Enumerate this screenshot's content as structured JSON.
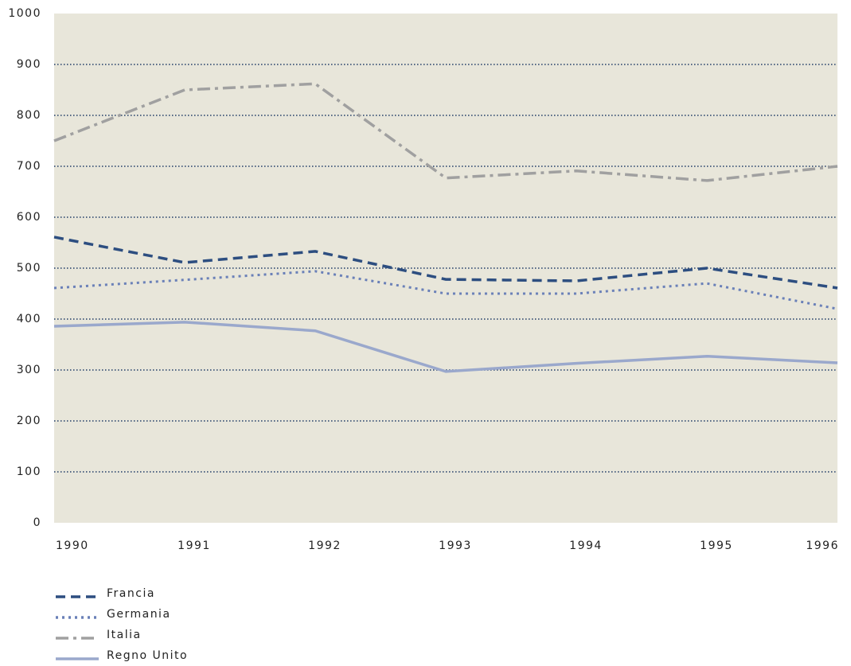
{
  "chart_data": {
    "type": "line",
    "x": [
      1990,
      1991,
      1992,
      1993,
      1994,
      1995,
      1996
    ],
    "xlim": [
      1990,
      1996
    ],
    "xticks": [
      1990,
      1991,
      1992,
      1993,
      1994,
      1995,
      1996
    ],
    "ylim": [
      0,
      1000
    ],
    "yticks": [
      0,
      100,
      200,
      300,
      400,
      500,
      600,
      700,
      800,
      900,
      1000
    ],
    "grid": true,
    "series": [
      {
        "name": "Francia",
        "color": "#2d4e80",
        "style": "dashed",
        "values": [
          561,
          511,
          533,
          478,
          475,
          500,
          461
        ]
      },
      {
        "name": "Germania",
        "color": "#6a80b8",
        "style": "dotted",
        "values": [
          461,
          477,
          494,
          450,
          450,
          470,
          420
        ]
      },
      {
        "name": "Italia",
        "color": "#a0a0a0",
        "style": "dashdot",
        "values": [
          750,
          850,
          862,
          677,
          691,
          672,
          700
        ]
      },
      {
        "name": "Regno Unito",
        "color": "#9aa8cc",
        "style": "solid",
        "values": [
          386,
          394,
          377,
          297,
          313,
          327,
          314
        ]
      }
    ]
  }
}
